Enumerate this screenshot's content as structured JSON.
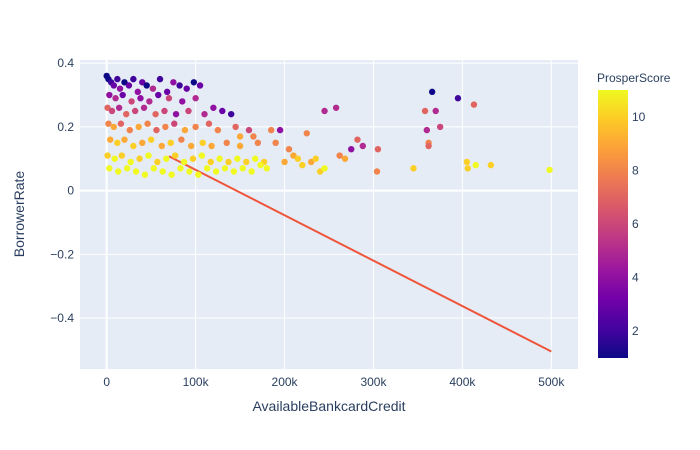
{
  "chart_data": {
    "type": "scatter",
    "xlabel": "AvailableBankcardCredit",
    "ylabel": "BorrowerRate",
    "xlim": [
      -30000,
      530000
    ],
    "ylim": [
      -0.56,
      0.41
    ],
    "x_ticks": [
      0,
      100000,
      200000,
      300000,
      400000,
      500000
    ],
    "x_tick_labels": [
      "0",
      "100k",
      "200k",
      "300k",
      "400k",
      "500k"
    ],
    "y_ticks": [
      -0.4,
      -0.2,
      0,
      0.2,
      0.4
    ],
    "y_tick_labels": [
      "−0.4",
      "−0.2",
      "0",
      "0.2",
      "0.4"
    ],
    "grid": true,
    "plot_background": "#e5ecf6",
    "colorbar": {
      "title": "ProsperScore",
      "range": [
        1,
        11
      ],
      "ticks": [
        2,
        4,
        6,
        8,
        10
      ],
      "tick_labels": [
        "2",
        "4",
        "6",
        "8",
        "10"
      ],
      "colorscale": [
        "#0d0887",
        "#46039f",
        "#7201a8",
        "#9c179e",
        "#bd3786",
        "#d8576b",
        "#ed7953",
        "#fb9f3a",
        "#fdca26",
        "#f0f921"
      ]
    },
    "trendline": {
      "color": "#ef553b",
      "points": [
        [
          70000,
          0.108
        ],
        [
          500000,
          -0.505
        ]
      ]
    },
    "points": [
      [
        0,
        0.36,
        1
      ],
      [
        2000,
        0.35,
        1
      ],
      [
        5000,
        0.34,
        2
      ],
      [
        8000,
        0.33,
        3
      ],
      [
        12000,
        0.35,
        2
      ],
      [
        15000,
        0.32,
        4
      ],
      [
        20000,
        0.34,
        1
      ],
      [
        25000,
        0.33,
        3
      ],
      [
        30000,
        0.35,
        2
      ],
      [
        35000,
        0.31,
        4
      ],
      [
        40000,
        0.34,
        3
      ],
      [
        45000,
        0.33,
        1
      ],
      [
        52000,
        0.32,
        5
      ],
      [
        60000,
        0.35,
        2
      ],
      [
        68000,
        0.31,
        3
      ],
      [
        75000,
        0.34,
        4
      ],
      [
        82000,
        0.33,
        2
      ],
      [
        90000,
        0.32,
        3
      ],
      [
        98000,
        0.34,
        1
      ],
      [
        105000,
        0.33,
        3
      ],
      [
        3000,
        0.3,
        4
      ],
      [
        10000,
        0.29,
        5
      ],
      [
        18000,
        0.3,
        3
      ],
      [
        28000,
        0.28,
        6
      ],
      [
        38000,
        0.29,
        4
      ],
      [
        48000,
        0.28,
        5
      ],
      [
        58000,
        0.3,
        3
      ],
      [
        70000,
        0.29,
        6
      ],
      [
        85000,
        0.28,
        4
      ],
      [
        100000,
        0.29,
        5
      ],
      [
        1000,
        0.26,
        7
      ],
      [
        6000,
        0.25,
        6
      ],
      [
        14000,
        0.26,
        5
      ],
      [
        22000,
        0.24,
        7
      ],
      [
        32000,
        0.25,
        6
      ],
      [
        42000,
        0.26,
        5
      ],
      [
        55000,
        0.24,
        7
      ],
      [
        65000,
        0.25,
        6
      ],
      [
        78000,
        0.24,
        4
      ],
      [
        92000,
        0.25,
        6
      ],
      [
        110000,
        0.24,
        5
      ],
      [
        120000,
        0.26,
        4
      ],
      [
        130000,
        0.25,
        3
      ],
      [
        140000,
        0.24,
        2
      ],
      [
        2000,
        0.21,
        8
      ],
      [
        8000,
        0.2,
        9
      ],
      [
        16000,
        0.21,
        7
      ],
      [
        26000,
        0.19,
        8
      ],
      [
        36000,
        0.2,
        9
      ],
      [
        46000,
        0.21,
        8
      ],
      [
        56000,
        0.19,
        7
      ],
      [
        66000,
        0.2,
        8
      ],
      [
        76000,
        0.21,
        6
      ],
      [
        88000,
        0.19,
        9
      ],
      [
        100000,
        0.2,
        8
      ],
      [
        115000,
        0.21,
        7
      ],
      [
        125000,
        0.19,
        8
      ],
      [
        145000,
        0.2,
        7
      ],
      [
        160000,
        0.19,
        6
      ],
      [
        4000,
        0.16,
        9
      ],
      [
        12000,
        0.15,
        10
      ],
      [
        20000,
        0.16,
        9
      ],
      [
        30000,
        0.14,
        10
      ],
      [
        40000,
        0.15,
        9
      ],
      [
        50000,
        0.16,
        10
      ],
      [
        62000,
        0.14,
        9
      ],
      [
        72000,
        0.15,
        10
      ],
      [
        84000,
        0.16,
        8
      ],
      [
        95000,
        0.14,
        9
      ],
      [
        108000,
        0.15,
        10
      ],
      [
        118000,
        0.14,
        9
      ],
      [
        135000,
        0.15,
        8
      ],
      [
        150000,
        0.14,
        9
      ],
      [
        170000,
        0.15,
        8
      ],
      [
        1000,
        0.11,
        10
      ],
      [
        9000,
        0.1,
        11
      ],
      [
        17000,
        0.11,
        10
      ],
      [
        27000,
        0.09,
        11
      ],
      [
        37000,
        0.1,
        10
      ],
      [
        47000,
        0.11,
        11
      ],
      [
        57000,
        0.09,
        10
      ],
      [
        67000,
        0.1,
        11
      ],
      [
        77000,
        0.11,
        10
      ],
      [
        87000,
        0.09,
        11
      ],
      [
        97000,
        0.1,
        10
      ],
      [
        107000,
        0.11,
        11
      ],
      [
        117000,
        0.09,
        10
      ],
      [
        127000,
        0.1,
        11
      ],
      [
        137000,
        0.09,
        10
      ],
      [
        147000,
        0.1,
        11
      ],
      [
        157000,
        0.09,
        10
      ],
      [
        167000,
        0.1,
        11
      ],
      [
        177000,
        0.09,
        10
      ],
      [
        3000,
        0.07,
        11
      ],
      [
        13000,
        0.06,
        11
      ],
      [
        23000,
        0.07,
        11
      ],
      [
        33000,
        0.06,
        11
      ],
      [
        43000,
        0.05,
        11
      ],
      [
        53000,
        0.07,
        11
      ],
      [
        63000,
        0.06,
        11
      ],
      [
        73000,
        0.05,
        11
      ],
      [
        83000,
        0.07,
        11
      ],
      [
        93000,
        0.06,
        11
      ],
      [
        103000,
        0.05,
        11
      ],
      [
        113000,
        0.07,
        11
      ],
      [
        123000,
        0.06,
        11
      ],
      [
        133000,
        0.07,
        11
      ],
      [
        143000,
        0.06,
        11
      ],
      [
        153000,
        0.07,
        11
      ],
      [
        163000,
        0.06,
        11
      ],
      [
        173000,
        0.08,
        11
      ],
      [
        180000,
        0.07,
        11
      ],
      [
        150000,
        0.17,
        9
      ],
      [
        165000,
        0.17,
        8
      ],
      [
        185000,
        0.19,
        8
      ],
      [
        190000,
        0.15,
        8
      ],
      [
        195000,
        0.19,
        4
      ],
      [
        200000,
        0.09,
        9
      ],
      [
        205000,
        0.13,
        8
      ],
      [
        210000,
        0.11,
        9
      ],
      [
        215000,
        0.1,
        10
      ],
      [
        220000,
        0.08,
        10
      ],
      [
        225000,
        0.18,
        8
      ],
      [
        230000,
        0.09,
        9
      ],
      [
        235000,
        0.1,
        10
      ],
      [
        240000,
        0.06,
        10
      ],
      [
        245000,
        0.07,
        11
      ],
      [
        245000,
        0.25,
        5
      ],
      [
        258000,
        0.26,
        5
      ],
      [
        262000,
        0.11,
        8
      ],
      [
        268000,
        0.1,
        9
      ],
      [
        275000,
        0.13,
        4
      ],
      [
        282000,
        0.16,
        7
      ],
      [
        288000,
        0.14,
        5
      ],
      [
        305000,
        0.13,
        7
      ],
      [
        304000,
        0.06,
        8
      ],
      [
        345000,
        0.07,
        10
      ],
      [
        358000,
        0.25,
        7
      ],
      [
        360000,
        0.19,
        5
      ],
      [
        362000,
        0.15,
        8
      ],
      [
        362000,
        0.14,
        7
      ],
      [
        366000,
        0.31,
        1
      ],
      [
        370000,
        0.25,
        5
      ],
      [
        375000,
        0.2,
        6
      ],
      [
        395000,
        0.29,
        2
      ],
      [
        405000,
        0.09,
        10
      ],
      [
        406000,
        0.07,
        10
      ],
      [
        413000,
        0.27,
        7
      ],
      [
        415000,
        0.08,
        11
      ],
      [
        432000,
        0.08,
        10
      ],
      [
        498000,
        0.065,
        11
      ]
    ]
  }
}
